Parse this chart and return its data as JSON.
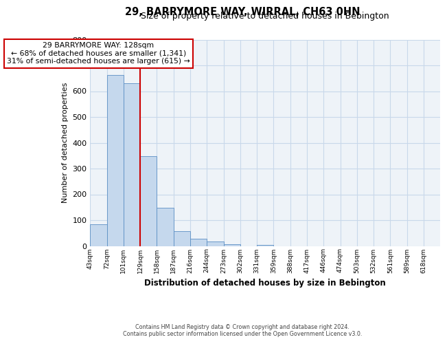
{
  "title": "29, BARRYMORE WAY, WIRRAL, CH63 0HN",
  "subtitle": "Size of property relative to detached houses in Bebington",
  "xlabel": "Distribution of detached houses by size in Bebington",
  "ylabel": "Number of detached properties",
  "categories": [
    "43sqm",
    "72sqm",
    "101sqm",
    "129sqm",
    "158sqm",
    "187sqm",
    "216sqm",
    "244sqm",
    "273sqm",
    "302sqm",
    "331sqm",
    "359sqm",
    "388sqm",
    "417sqm",
    "446sqm",
    "474sqm",
    "503sqm",
    "532sqm",
    "561sqm",
    "589sqm",
    "618sqm"
  ],
  "bar_values": [
    83,
    663,
    630,
    348,
    148,
    57,
    27,
    18,
    8,
    0,
    5,
    0,
    0,
    0,
    0,
    0,
    0,
    0,
    0,
    0,
    0
  ],
  "bar_color": "#c5d8ed",
  "bar_edge_color": "#5b8ec4",
  "grid_color": "#c8d8ea",
  "property_line_x": 3,
  "property_label": "29 BARRYMORE WAY: 128sqm",
  "annotation_line1": "← 68% of detached houses are smaller (1,341)",
  "annotation_line2": "31% of semi-detached houses are larger (615) →",
  "annotation_box_color": "#ffffff",
  "annotation_box_edge": "#cc0000",
  "vline_color": "#cc0000",
  "footer_line1": "Contains HM Land Registry data © Crown copyright and database right 2024.",
  "footer_line2": "Contains public sector information licensed under the Open Government Licence v3.0.",
  "ylim": [
    0,
    800
  ],
  "yticks": [
    0,
    100,
    200,
    300,
    400,
    500,
    600,
    700,
    800
  ],
  "plot_bg_color": "#eef3f8",
  "bg_color": "#ffffff"
}
